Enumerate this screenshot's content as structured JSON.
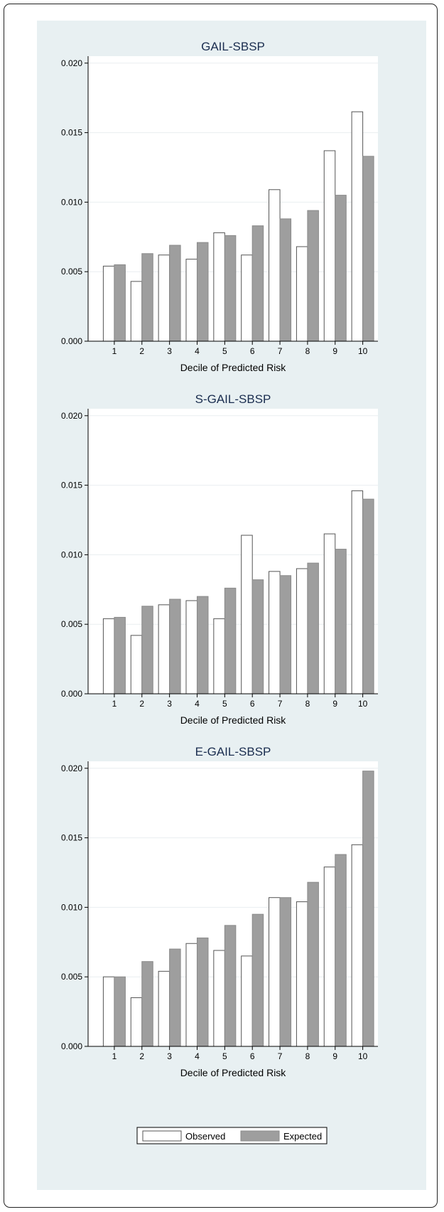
{
  "colors": {
    "observed_fill": "#ffffff",
    "observed_stroke": "#555555",
    "expected_fill": "#9e9e9e",
    "expected_stroke": "#8a8a8a",
    "panel_background": "#e8f0f2",
    "title_color": "#1a2d4f"
  },
  "legend": {
    "placement": "bottom-center",
    "items": [
      {
        "label": "Observed",
        "color": "#ffffff"
      },
      {
        "label": "Expected",
        "color": "#9e9e9e"
      }
    ]
  },
  "chart_data": [
    {
      "type": "bar",
      "title": "GAIL-SBSP",
      "xlabel": "Decile of Predicted Risk",
      "ylabel": "",
      "ylim": [
        0,
        0.0205
      ],
      "yticks": [
        "0.000",
        "0.005",
        "0.010",
        "0.015",
        "0.020"
      ],
      "ytick_values": [
        0,
        0.005,
        0.01,
        0.015,
        0.02
      ],
      "categories": [
        "1",
        "2",
        "3",
        "4",
        "5",
        "6",
        "7",
        "8",
        "9",
        "10"
      ],
      "grid": true,
      "series": [
        {
          "name": "Observed",
          "values": [
            0.0054,
            0.0043,
            0.0062,
            0.0059,
            0.0078,
            0.0062,
            0.0109,
            0.0068,
            0.0137,
            0.0165
          ]
        },
        {
          "name": "Expected",
          "values": [
            0.0055,
            0.0063,
            0.0069,
            0.0071,
            0.0076,
            0.0083,
            0.0088,
            0.0094,
            0.0105,
            0.0133
          ]
        }
      ]
    },
    {
      "type": "bar",
      "title": "S-GAIL-SBSP",
      "xlabel": "Decile of Predicted Risk",
      "ylabel": "",
      "ylim": [
        0,
        0.0205
      ],
      "yticks": [
        "0.000",
        "0.005",
        "0.010",
        "0.015",
        "0.020"
      ],
      "ytick_values": [
        0,
        0.005,
        0.01,
        0.015,
        0.02
      ],
      "categories": [
        "1",
        "2",
        "3",
        "4",
        "5",
        "6",
        "7",
        "8",
        "9",
        "10"
      ],
      "grid": true,
      "series": [
        {
          "name": "Observed",
          "values": [
            0.0054,
            0.0042,
            0.0064,
            0.0067,
            0.0054,
            0.0114,
            0.0088,
            0.009,
            0.0115,
            0.0146
          ]
        },
        {
          "name": "Expected",
          "values": [
            0.0055,
            0.0063,
            0.0068,
            0.007,
            0.0076,
            0.0082,
            0.0085,
            0.0094,
            0.0104,
            0.014
          ]
        }
      ]
    },
    {
      "type": "bar",
      "title": "E-GAIL-SBSP",
      "xlabel": "Decile of Predicted Risk",
      "ylabel": "",
      "ylim": [
        0,
        0.0205
      ],
      "yticks": [
        "0.000",
        "0.005",
        "0.010",
        "0.015",
        "0.020"
      ],
      "ytick_values": [
        0,
        0.005,
        0.01,
        0.015,
        0.02
      ],
      "categories": [
        "1",
        "2",
        "3",
        "4",
        "5",
        "6",
        "7",
        "8",
        "9",
        "10"
      ],
      "grid": true,
      "series": [
        {
          "name": "Observed",
          "values": [
            0.005,
            0.0035,
            0.0054,
            0.0074,
            0.0069,
            0.0065,
            0.0107,
            0.0104,
            0.0129,
            0.0145
          ]
        },
        {
          "name": "Expected",
          "values": [
            0.005,
            0.0061,
            0.007,
            0.0078,
            0.0087,
            0.0095,
            0.0107,
            0.0118,
            0.0138,
            0.0198
          ]
        }
      ]
    }
  ]
}
